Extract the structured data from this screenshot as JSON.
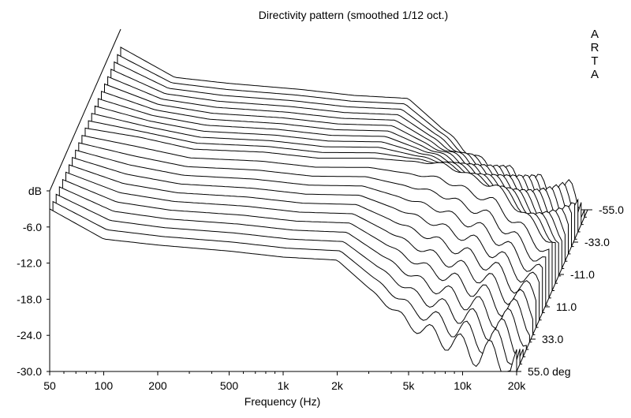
{
  "chart_data": {
    "type": "waterfall",
    "title": "Directivity pattern (smoothed 1/12 oct.)",
    "watermark": [
      "A",
      "R",
      "T",
      "A"
    ],
    "xlabel": "Frequency (Hz)",
    "zlabel": "dB",
    "x_scale": "log",
    "xlim": [
      50,
      20000
    ],
    "ylim": [
      -30,
      0
    ],
    "x_ticks": [
      {
        "value": 50,
        "label": "50"
      },
      {
        "value": 100,
        "label": "100"
      },
      {
        "value": 200,
        "label": "200"
      },
      {
        "value": 500,
        "label": "500"
      },
      {
        "value": 1000,
        "label": "1k"
      },
      {
        "value": 2000,
        "label": "2k"
      },
      {
        "value": 5000,
        "label": "5k"
      },
      {
        "value": 10000,
        "label": "10k"
      },
      {
        "value": 20000,
        "label": "20k"
      }
    ],
    "y_ticks": [
      {
        "value": 0,
        "label": "dB"
      },
      {
        "value": -6,
        "label": "-6.0"
      },
      {
        "value": -12,
        "label": "-12.0"
      },
      {
        "value": -18,
        "label": "-18.0"
      },
      {
        "value": -24,
        "label": "-24.0"
      },
      {
        "value": -30,
        "label": "-30.0"
      }
    ],
    "angle_range": [
      -55,
      55
    ],
    "angle_step": 5,
    "angle_ticks": [
      {
        "value": -55,
        "label": "-55.0"
      },
      {
        "value": -33,
        "label": "-33.0"
      },
      {
        "value": -11,
        "label": "-11.0"
      },
      {
        "value": 11,
        "label": "11.0"
      },
      {
        "value": 33,
        "label": "33.0"
      },
      {
        "value": 55,
        "label": "55.0 deg"
      }
    ],
    "series": [
      {
        "angle": 0,
        "response": [
          {
            "freq": 50,
            "db": -3.0
          },
          {
            "freq": 100,
            "db": -4.5
          },
          {
            "freq": 200,
            "db": -6.5
          },
          {
            "freq": 500,
            "db": -7.0
          },
          {
            "freq": 1000,
            "db": -8.0
          },
          {
            "freq": 2000,
            "db": -8.0
          },
          {
            "freq": 5000,
            "db": -9.0
          },
          {
            "freq": 10000,
            "db": -13.0
          },
          {
            "freq": 20000,
            "db": -22.0
          }
        ]
      },
      {
        "angle": 55,
        "response": [
          {
            "freq": 50,
            "db": -3.0
          },
          {
            "freq": 100,
            "db": -8.0
          },
          {
            "freq": 200,
            "db": -9.0
          },
          {
            "freq": 500,
            "db": -10.0
          },
          {
            "freq": 1000,
            "db": -11.0
          },
          {
            "freq": 2000,
            "db": -11.5
          },
          {
            "freq": 5000,
            "db": -22.0
          },
          {
            "freq": 10000,
            "db": -26.0
          },
          {
            "freq": 20000,
            "db": -29.0
          }
        ]
      }
    ]
  }
}
